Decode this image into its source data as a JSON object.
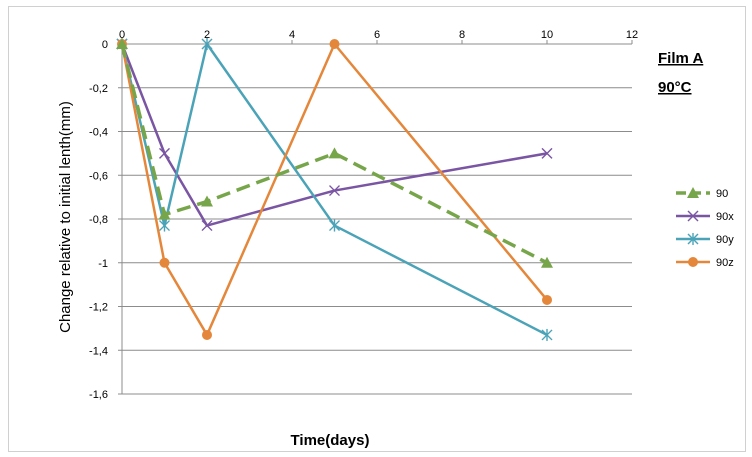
{
  "chart_data": {
    "type": "line",
    "title": "",
    "annotation": [
      "Film A",
      "90°C"
    ],
    "xlabel": "Time(days)",
    "ylabel": "Change relative to initial lenth(mm)",
    "xlim": [
      0,
      12
    ],
    "ylim": [
      -1.6,
      0
    ],
    "x_ticks": [
      0,
      2,
      4,
      6,
      8,
      10,
      12
    ],
    "x_tick_labels": [
      "0",
      "2",
      "4",
      "6",
      "8",
      "10",
      "12"
    ],
    "y_ticks": [
      0,
      -0.2,
      -0.4,
      -0.6,
      -0.8,
      -1,
      -1.2,
      -1.4,
      -1.6
    ],
    "y_tick_labels": [
      "0",
      "-0,2",
      "-0,4",
      "-0,6",
      "-0,8",
      "-1",
      "-1,2",
      "-1,4",
      "-1,6"
    ],
    "grid": "horizontal",
    "legend_position": "right",
    "x": [
      0,
      1,
      2,
      5,
      10
    ],
    "series": [
      {
        "name": "90",
        "values": [
          0,
          -0.78,
          -0.72,
          -0.5,
          -1.0
        ],
        "color": "#77a64a",
        "marker": "triangle",
        "dash": "dashed"
      },
      {
        "name": "90x",
        "values": [
          0,
          -0.5,
          -0.83,
          -0.67,
          -0.5
        ],
        "color": "#7a55a3",
        "marker": "x",
        "dash": "solid"
      },
      {
        "name": "90y",
        "values": [
          0,
          -0.83,
          0,
          -0.83,
          -1.33
        ],
        "color": "#4ba3b8",
        "marker": "asterisk",
        "dash": "solid"
      },
      {
        "name": "90z",
        "values": [
          0,
          -1.0,
          -1.33,
          0,
          -1.17
        ],
        "color": "#e5873a",
        "marker": "circle",
        "dash": "solid"
      }
    ]
  }
}
